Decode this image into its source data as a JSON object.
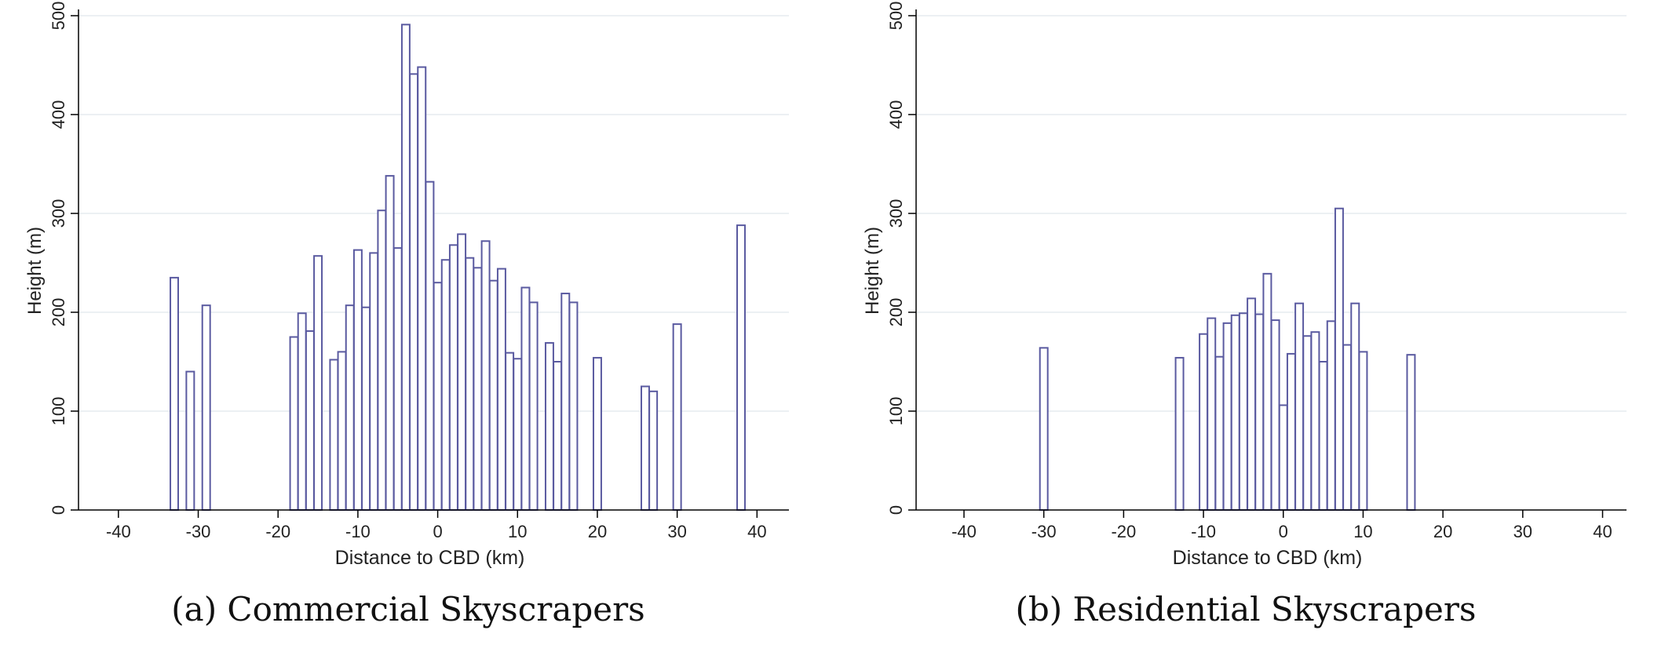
{
  "colors": {
    "bar_stroke": "#5a5aa0",
    "grid": "#e6ecef",
    "axis": "#000000",
    "text": "#222222"
  },
  "chart_data": [
    {
      "type": "bar",
      "caption": "(a) Commercial Skyscrapers",
      "xlabel": "Distance to CBD (km)",
      "ylabel": "Height (m)",
      "xlim": [
        -45,
        44
      ],
      "ylim": [
        0,
        500
      ],
      "xticks": [
        -40,
        -30,
        -20,
        -10,
        0,
        10,
        20,
        30,
        40
      ],
      "yticks": [
        0,
        100,
        200,
        300,
        400,
        500
      ],
      "grid": true,
      "x": [
        -33,
        -31,
        -29,
        -18,
        -17,
        -16,
        -15,
        -13,
        -12,
        -11,
        -10,
        -9,
        -8,
        -7,
        -6,
        -5,
        -4,
        -3,
        -2,
        -1,
        0,
        1,
        2,
        3,
        4,
        5,
        6,
        7,
        8,
        9,
        10,
        11,
        12,
        14,
        15,
        16,
        17,
        20,
        26,
        27,
        30,
        38
      ],
      "values": [
        235,
        140,
        207,
        175,
        199,
        181,
        257,
        152,
        160,
        207,
        263,
        205,
        260,
        303,
        338,
        265,
        491,
        441,
        448,
        332,
        230,
        253,
        268,
        279,
        255,
        245,
        272,
        232,
        244,
        159,
        153,
        225,
        210,
        169,
        150,
        219,
        210,
        154,
        125,
        120,
        188,
        288
      ]
    },
    {
      "type": "bar",
      "caption": "(b) Residential Skyscrapers",
      "xlabel": "Distance to CBD (km)",
      "ylabel": "Height (m)",
      "xlim": [
        -46,
        43
      ],
      "ylim": [
        0,
        500
      ],
      "xticks": [
        -40,
        -30,
        -20,
        -10,
        0,
        10,
        20,
        30,
        40
      ],
      "yticks": [
        0,
        100,
        200,
        300,
        400,
        500
      ],
      "grid": true,
      "x": [
        -30,
        -13,
        -10,
        -9,
        -8,
        -7,
        -6,
        -5,
        -4,
        -3,
        -2,
        -1,
        0,
        1,
        2,
        3,
        4,
        5,
        6,
        7,
        8,
        9,
        10,
        16
      ],
      "values": [
        164,
        154,
        178,
        194,
        155,
        189,
        197,
        199,
        214,
        198,
        239,
        192,
        106,
        158,
        209,
        176,
        180,
        150,
        191,
        305,
        167,
        209,
        160,
        157
      ]
    }
  ]
}
